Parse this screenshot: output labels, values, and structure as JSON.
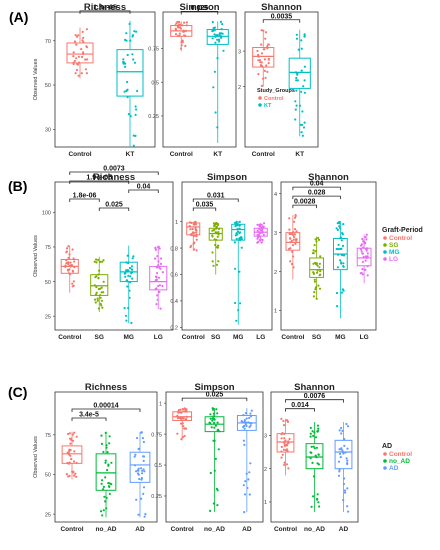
{
  "figure": {
    "panel_labels": [
      "(A)",
      "(B)",
      "(C)"
    ],
    "y_axis_label": "Observed Values"
  },
  "colors": {
    "Control": "#f8766d",
    "KT": "#00bfc4",
    "SG": "#7cae00",
    "MG": "#00bfc4",
    "LG": "#e76bf3",
    "no_AD": "#00ba38",
    "AD": "#619cff"
  },
  "legends": [
    {
      "title": "Study_Groups",
      "entries": [
        "Control",
        "KT"
      ]
    },
    {
      "title": "Graft-Period",
      "entries": [
        "Control",
        "SG",
        "MG",
        "LG"
      ]
    },
    {
      "title": "AD",
      "entries": [
        "Control",
        "no_AD",
        "AD"
      ]
    }
  ],
  "chart_data": [
    {
      "type": "box",
      "panel": "(A)",
      "title": "Richness",
      "categories": [
        "Control",
        "KT"
      ],
      "yticks": [
        30,
        50,
        70
      ],
      "ylim": [
        22,
        83
      ],
      "boxes": [
        {
          "group": "Control",
          "min": 53,
          "q1": 60,
          "median": 64,
          "q3": 69,
          "max": 76
        },
        {
          "group": "KT",
          "min": 22,
          "q1": 45,
          "median": 56,
          "q3": 66,
          "max": 79
        }
      ],
      "brackets": [
        {
          "from": 0,
          "to": 1,
          "label": "1.3e-05",
          "level": 0
        }
      ]
    },
    {
      "type": "box",
      "panel": "(A)",
      "title": "Simpson",
      "categories": [
        "Control",
        "KT"
      ],
      "yticks": [
        0.25,
        0.5,
        0.75
      ],
      "ylim": [
        0.02,
        1.02
      ],
      "boxes": [
        {
          "group": "Control",
          "min": 0.73,
          "q1": 0.84,
          "median": 0.88,
          "q3": 0.92,
          "max": 0.95
        },
        {
          "group": "KT",
          "min": 0.05,
          "q1": 0.78,
          "median": 0.84,
          "q3": 0.89,
          "max": 0.95
        }
      ],
      "brackets": [
        {
          "from": 0,
          "to": 1,
          "label": "0.025",
          "level": 0
        }
      ]
    },
    {
      "type": "box",
      "panel": "(A)",
      "title": "Shannon",
      "categories": [
        "Control",
        "KT"
      ],
      "yticks": [
        2,
        3
      ],
      "ylim": [
        0.3,
        4.1
      ],
      "boxes": [
        {
          "group": "Control",
          "min": 2.0,
          "q1": 2.55,
          "median": 2.85,
          "q3": 3.1,
          "max": 3.6
        },
        {
          "group": "KT",
          "min": 0.6,
          "q1": 1.95,
          "median": 2.4,
          "q3": 2.8,
          "max": 3.6
        }
      ],
      "brackets": [
        {
          "from": 0,
          "to": 1,
          "label": "0.0035",
          "level": 0
        }
      ]
    },
    {
      "type": "box",
      "panel": "(B)",
      "title": "Richness",
      "categories": [
        "Control",
        "SG",
        "MG",
        "LG"
      ],
      "yticks": [
        25,
        50,
        75,
        100
      ],
      "ylim": [
        15,
        122
      ],
      "boxes": [
        {
          "group": "Control",
          "min": 42,
          "q1": 56,
          "median": 61,
          "q3": 66,
          "max": 76
        },
        {
          "group": "SG",
          "min": 28,
          "q1": 40,
          "median": 47,
          "q3": 55,
          "max": 68
        },
        {
          "group": "MG",
          "min": 20,
          "q1": 50,
          "median": 57,
          "q3": 64,
          "max": 76
        },
        {
          "group": "LG",
          "min": 30,
          "q1": 44,
          "median": 50,
          "q3": 61,
          "max": 76
        }
      ],
      "brackets": [
        {
          "from": 0,
          "to": 3,
          "label": "0.0073",
          "level": 4
        },
        {
          "from": 0,
          "to": 2,
          "label": "1.9 e-05",
          "level": 3
        },
        {
          "from": 2,
          "to": 3,
          "label": "0.04",
          "level": 2
        },
        {
          "from": 0,
          "to": 1,
          "label": "1.8e-06",
          "level": 1
        },
        {
          "from": 1,
          "to": 2,
          "label": "0.025",
          "level": 0
        }
      ]
    },
    {
      "type": "box",
      "panel": "(B)",
      "title": "Simpson",
      "categories": [
        "Control",
        "SG",
        "MG",
        "LG"
      ],
      "yticks": [
        0.2,
        0.4,
        0.6,
        0.8,
        1.0
      ],
      "ylim": [
        0.18,
        1.3
      ],
      "boxes": [
        {
          "group": "Control",
          "min": 0.78,
          "q1": 0.9,
          "median": 0.96,
          "q3": 0.99,
          "max": 1.0
        },
        {
          "group": "SG",
          "min": 0.6,
          "q1": 0.86,
          "median": 0.91,
          "q3": 0.95,
          "max": 0.99
        },
        {
          "group": "MG",
          "min": 0.22,
          "q1": 0.86,
          "median": 0.94,
          "q3": 0.98,
          "max": 1.0
        },
        {
          "group": "LG",
          "min": 0.84,
          "q1": 0.89,
          "median": 0.92,
          "q3": 0.95,
          "max": 0.99
        }
      ],
      "brackets": [
        {
          "from": 0,
          "to": 2,
          "label": "0.031",
          "level": 1
        },
        {
          "from": 0,
          "to": 1,
          "label": "0.035",
          "level": 0
        }
      ]
    },
    {
      "type": "box",
      "panel": "(B)",
      "title": "Shannon",
      "categories": [
        "Control",
        "SG",
        "MG",
        "LG"
      ],
      "yticks": [
        1,
        2,
        3,
        4
      ],
      "ylim": [
        0.5,
        4.3
      ],
      "boxes": [
        {
          "group": "Control",
          "min": 1.8,
          "q1": 2.55,
          "median": 2.75,
          "q3": 3.0,
          "max": 3.45
        },
        {
          "group": "SG",
          "min": 1.3,
          "q1": 1.85,
          "median": 2.05,
          "q3": 2.35,
          "max": 2.9
        },
        {
          "group": "MG",
          "min": 0.8,
          "q1": 2.05,
          "median": 2.45,
          "q3": 2.85,
          "max": 3.3
        },
        {
          "group": "LG",
          "min": 1.7,
          "q1": 2.15,
          "median": 2.35,
          "q3": 2.6,
          "max": 2.95
        }
      ],
      "brackets": [
        {
          "from": 0,
          "to": 2,
          "label": "0.04",
          "level": 2
        },
        {
          "from": 0,
          "to": 2,
          "label": "0.028",
          "level": 1
        },
        {
          "from": 0,
          "to": 1,
          "label": "0.0028",
          "level": 0
        }
      ]
    },
    {
      "type": "box",
      "panel": "(C)",
      "title": "Richness",
      "categories": [
        "Control",
        "no_AD",
        "AD"
      ],
      "yticks": [
        25,
        50,
        75
      ],
      "ylim": [
        20,
        102
      ],
      "boxes": [
        {
          "group": "Control",
          "min": 47,
          "q1": 57,
          "median": 63,
          "q3": 68,
          "max": 77
        },
        {
          "group": "no_AD",
          "min": 23,
          "q1": 40,
          "median": 51,
          "q3": 63,
          "max": 77
        },
        {
          "group": "AD",
          "min": 23,
          "q1": 45,
          "median": 56,
          "q3": 64,
          "max": 77
        }
      ],
      "brackets": [
        {
          "from": 0,
          "to": 2,
          "label": "0.00014",
          "level": 1
        },
        {
          "from": 0,
          "to": 1,
          "label": "3.4e-5",
          "level": 0
        }
      ]
    },
    {
      "type": "box",
      "panel": "(C)",
      "title": "Simpson",
      "categories": [
        "Control",
        "no_AD",
        "AD"
      ],
      "yticks": [
        0.25,
        0.5,
        0.75,
        1.0
      ],
      "ylim": [
        0.04,
        1.09
      ],
      "boxes": [
        {
          "group": "Control",
          "min": 0.7,
          "q1": 0.86,
          "median": 0.89,
          "q3": 0.93,
          "max": 0.96
        },
        {
          "group": "no_AD",
          "min": 0.12,
          "q1": 0.77,
          "median": 0.83,
          "q3": 0.89,
          "max": 0.96
        },
        {
          "group": "AD",
          "min": 0.12,
          "q1": 0.78,
          "median": 0.84,
          "q3": 0.9,
          "max": 0.96
        }
      ],
      "brackets": [
        {
          "from": 0,
          "to": 2,
          "label": "0.025",
          "level": 0
        }
      ]
    },
    {
      "type": "box",
      "panel": "(C)",
      "title": "Shannon",
      "categories": [
        "Control",
        "no_AD",
        "AD"
      ],
      "yticks": [
        1,
        2,
        3
      ],
      "ylim": [
        0.4,
        4.3
      ],
      "boxes": [
        {
          "group": "Control",
          "min": 1.8,
          "q1": 2.5,
          "median": 2.8,
          "q3": 3.05,
          "max": 3.5
        },
        {
          "group": "no_AD",
          "min": 0.7,
          "q1": 2.0,
          "median": 2.35,
          "q3": 2.75,
          "max": 3.4
        },
        {
          "group": "AD",
          "min": 0.7,
          "q1": 2.0,
          "median": 2.5,
          "q3": 2.85,
          "max": 3.4
        }
      ],
      "brackets": [
        {
          "from": 0,
          "to": 2,
          "label": "0.0076",
          "level": 1
        },
        {
          "from": 0,
          "to": 1,
          "label": "0.014",
          "level": 0
        }
      ]
    }
  ]
}
